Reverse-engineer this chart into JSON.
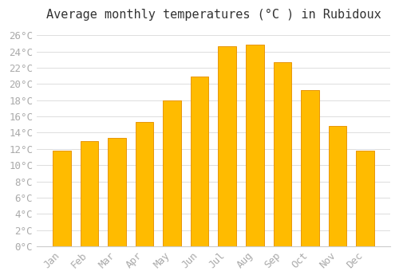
{
  "title": "Average monthly temperatures (°C ) in Rubidoux",
  "months": [
    "Jan",
    "Feb",
    "Mar",
    "Apr",
    "May",
    "Jun",
    "Jul",
    "Aug",
    "Sep",
    "Oct",
    "Nov",
    "Dec"
  ],
  "values": [
    11.8,
    13.0,
    13.4,
    15.3,
    18.0,
    20.9,
    24.7,
    24.9,
    22.7,
    19.3,
    14.8,
    11.8
  ],
  "bar_color": "#FFBB00",
  "bar_edge_color": "#E8960A",
  "background_color": "#FFFFFF",
  "plot_bg_color": "#FFFFFF",
  "grid_color": "#DDDDDD",
  "ylim": [
    0,
    27
  ],
  "ytick_step": 2,
  "title_fontsize": 11,
  "tick_fontsize": 9,
  "tick_label_color": "#AAAAAA",
  "title_color": "#333333",
  "font_family": "monospace"
}
